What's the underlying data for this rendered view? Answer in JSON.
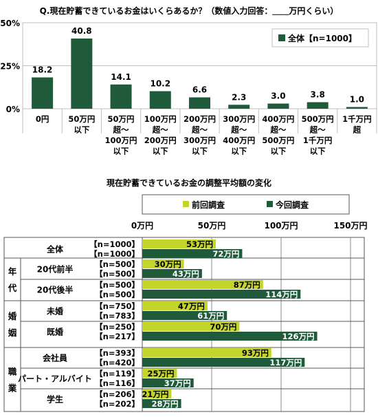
{
  "chart_data": [
    {
      "type": "bar",
      "title": "Q.現在貯蓄できているお金はいくらあるか？（数値入力回答：＿＿万円くらい）",
      "y_tick_labels": [
        "50%",
        "25%",
        "0%"
      ],
      "ylim": [
        0,
        50
      ],
      "ygrid_values": [
        0,
        25,
        50
      ],
      "legend": {
        "position": "top-right",
        "label": "全体【n=1000】",
        "color": "#1f5a3a"
      },
      "categories": [
        [
          "0円"
        ],
        [
          "50万円",
          "以下"
        ],
        [
          "50万円",
          "超～",
          "100万円",
          "以下"
        ],
        [
          "100万円",
          "超～",
          "200万円",
          "以下"
        ],
        [
          "200万円",
          "超～",
          "300万円",
          "以下"
        ],
        [
          "300万円",
          "超～",
          "400万円",
          "以下"
        ],
        [
          "400万円",
          "超～",
          "500万円",
          "以下"
        ],
        [
          "500万円",
          "超～",
          "1千万円",
          "以下"
        ],
        [
          "1千万円",
          "超"
        ]
      ],
      "values": [
        18.2,
        40.8,
        14.1,
        10.2,
        6.6,
        2.3,
        3.0,
        3.8,
        1.0
      ],
      "value_labels": [
        "18.2",
        "40.8",
        "14.1",
        "10.2",
        "6.6",
        "2.3",
        "3.0",
        "3.8",
        "1.0"
      ]
    },
    {
      "type": "bar",
      "orientation": "horizontal",
      "title": "現在貯蓄できているお金の調整平均額の変化",
      "x_tick_labels": [
        "0万円",
        "50万円",
        "100万円",
        "150万円"
      ],
      "xlim": [
        0,
        150
      ],
      "xgrid_values": [
        0,
        50,
        100,
        150
      ],
      "legend": {
        "position": "top",
        "items": [
          {
            "label": "前回調査",
            "color": "#c3d42a"
          },
          {
            "label": "今回調査",
            "color": "#1f5a3a"
          }
        ]
      },
      "group_labels": [
        [
          "年",
          "代"
        ],
        [
          "婚",
          "姻"
        ],
        [
          "職",
          "業"
        ]
      ],
      "categories": [
        {
          "label": "全体",
          "prev_n": "【n=1000】",
          "curr_n": "【n=1000】",
          "prev": 53,
          "curr": 72,
          "prev_label": "53万円",
          "curr_label": "72万円"
        },
        {
          "label": "20代前半",
          "prev_n": "【n=500】",
          "curr_n": "【n=500】",
          "prev": 30,
          "curr": 43,
          "prev_label": "30万円",
          "curr_label": "43万円"
        },
        {
          "label": "20代後半",
          "prev_n": "【n=500】",
          "curr_n": "【n=500】",
          "prev": 87,
          "curr": 114,
          "prev_label": "87万円",
          "curr_label": "114万円"
        },
        {
          "label": "未婚",
          "prev_n": "【n=750】",
          "curr_n": "【n=783】",
          "prev": 47,
          "curr": 61,
          "prev_label": "47万円",
          "curr_label": "61万円"
        },
        {
          "label": "既婚",
          "prev_n": "【n=250】",
          "curr_n": "【n=217】",
          "prev": 70,
          "curr": 126,
          "prev_label": "70万円",
          "curr_label": "126万円"
        },
        {
          "label": "会社員",
          "prev_n": "【n=393】",
          "curr_n": "【n=420】",
          "prev": 93,
          "curr": 117,
          "prev_label": "93万円",
          "curr_label": "117万円"
        },
        {
          "label": "パート・アルバイト",
          "prev_n": "【n=119】",
          "curr_n": "【n=116】",
          "prev": 25,
          "curr": 37,
          "prev_label": "25万円",
          "curr_label": "37万円"
        },
        {
          "label": "学生",
          "prev_n": "【n=206】",
          "curr_n": "【n=202】",
          "prev": 21,
          "curr": 28,
          "prev_label": "21万円",
          "curr_label": "28万円"
        }
      ]
    }
  ]
}
